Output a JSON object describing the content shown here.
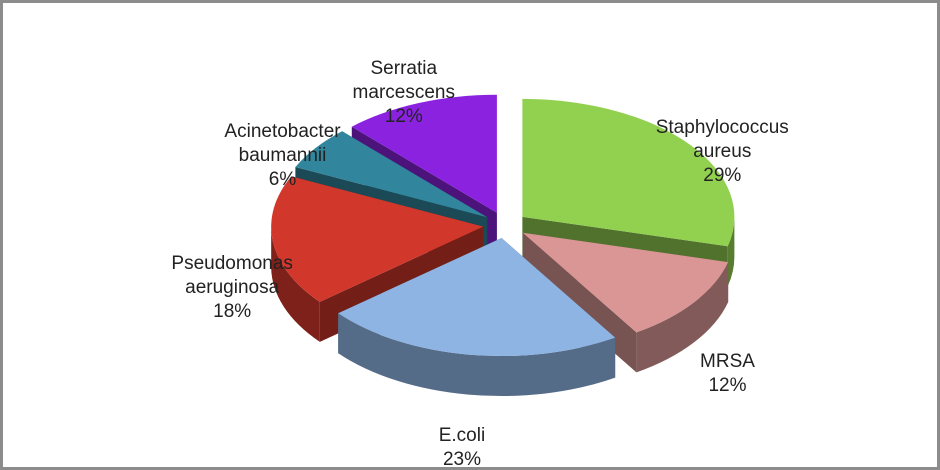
{
  "chart_data": {
    "type": "pie3d",
    "categories": [
      "Staphylococcus aureus",
      "MRSA",
      "E.coli",
      "Pseudomonas aeruginosa",
      "Acinetobacter baumannii",
      "Serratia marcescens"
    ],
    "values": [
      29,
      12,
      23,
      18,
      6,
      12
    ],
    "value_labels": [
      "29%",
      "12%",
      "23%",
      "18%",
      "6%",
      "12%"
    ],
    "colors": [
      "#92d050",
      "#d99694",
      "#8eb4e3",
      "#d2372c",
      "#31859c",
      "#8a22e0"
    ]
  }
}
